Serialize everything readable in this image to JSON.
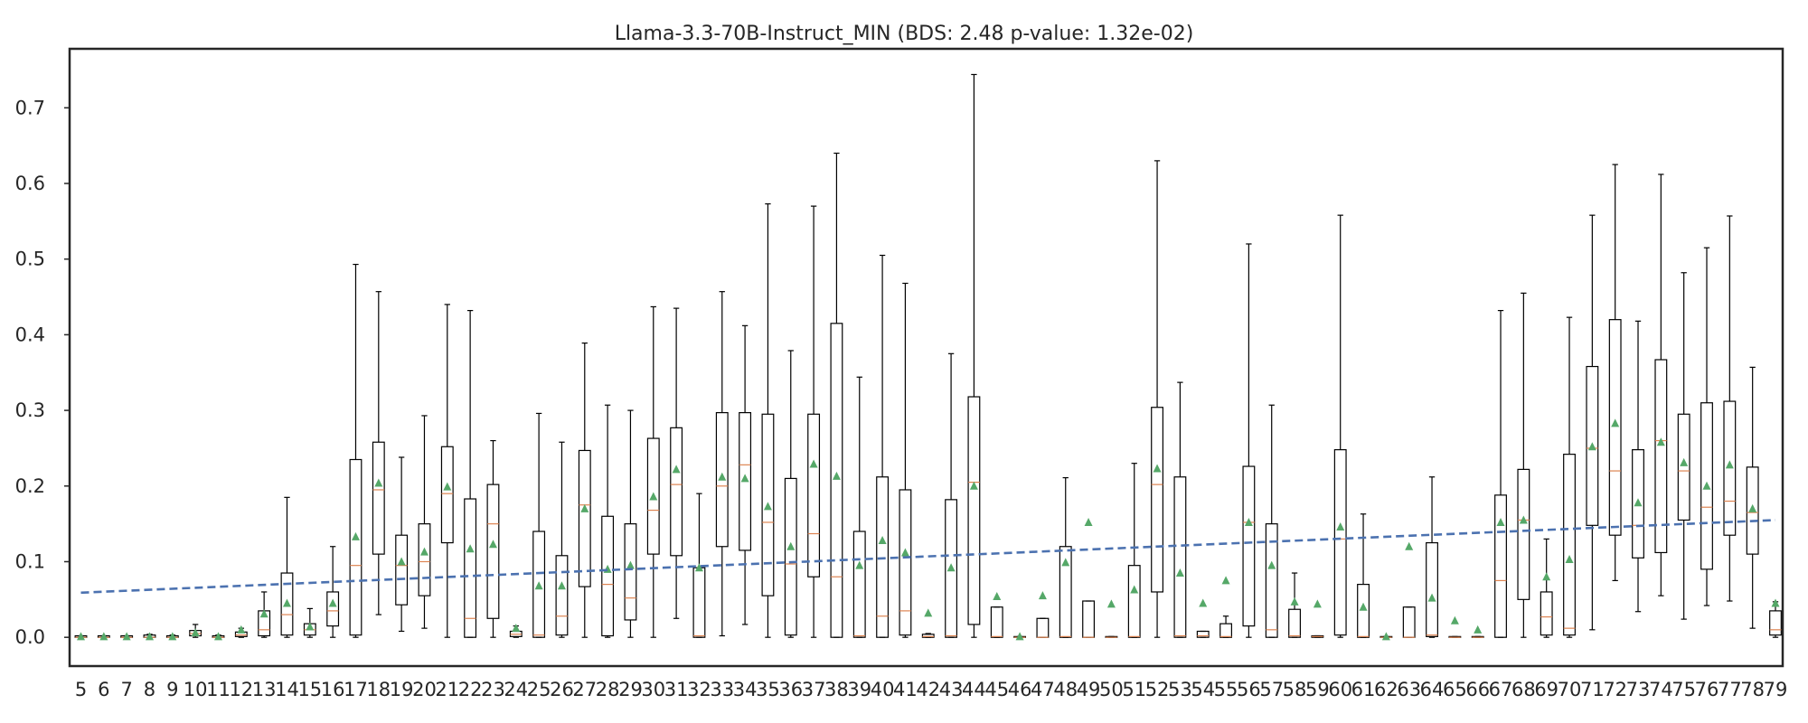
{
  "chart_data": {
    "type": "box",
    "title": "Llama-3.3-70B-Instruct_MIN (BDS: 2.48 p-value: 1.32e-02)",
    "xlabel": "",
    "ylabel": "",
    "ylim": [
      -0.038,
      0.778
    ],
    "y_ticks": [
      0.0,
      0.1,
      0.2,
      0.3,
      0.4,
      0.5,
      0.6,
      0.7
    ],
    "y_tick_labels": [
      "0.0",
      "0.1",
      "0.2",
      "0.3",
      "0.4",
      "0.5",
      "0.6",
      "0.7"
    ],
    "grid": false,
    "legend": "none",
    "colors": {
      "box": "#000000",
      "median": "#dd8452",
      "mean_marker": "#55a868",
      "trend": "#4c72b0",
      "frame": "#262626"
    },
    "categories": [
      "5",
      "6",
      "7",
      "8",
      "9",
      "10",
      "11",
      "12",
      "13",
      "14",
      "15",
      "16",
      "17",
      "18",
      "19",
      "20",
      "21",
      "22",
      "23",
      "24",
      "25",
      "26",
      "27",
      "28",
      "29",
      "30",
      "31",
      "32",
      "33",
      "34",
      "35",
      "36",
      "37",
      "38",
      "39",
      "40",
      "41",
      "42",
      "43",
      "44",
      "45",
      "46",
      "47",
      "48",
      "49",
      "50",
      "51",
      "52",
      "53",
      "54",
      "55",
      "56",
      "57",
      "58",
      "59",
      "60",
      "61",
      "62",
      "63",
      "64",
      "65",
      "66",
      "67",
      "68",
      "69",
      "70",
      "71",
      "72",
      "73",
      "74",
      "75",
      "76",
      "77",
      "78",
      "79"
    ],
    "boxes": [
      {
        "wlo": 0,
        "q1": 0,
        "med": 0,
        "q3": 0.002,
        "whi": 0.002,
        "mean": 0.001
      },
      {
        "wlo": 0,
        "q1": 0,
        "med": 0,
        "q3": 0.002,
        "whi": 0.002,
        "mean": 0.001
      },
      {
        "wlo": 0,
        "q1": 0,
        "med": 0,
        "q3": 0.002,
        "whi": 0.002,
        "mean": 0.001
      },
      {
        "wlo": 0,
        "q1": 0,
        "med": 0,
        "q3": 0.003,
        "whi": 0.004,
        "mean": 0.001
      },
      {
        "wlo": 0,
        "q1": 0,
        "med": 0,
        "q3": 0.002,
        "whi": 0.003,
        "mean": 0.001
      },
      {
        "wlo": 0,
        "q1": 0.002,
        "med": 0.005,
        "q3": 0.009,
        "whi": 0.017,
        "mean": 0.006
      },
      {
        "wlo": 0,
        "q1": 0,
        "med": 0,
        "q3": 0.002,
        "whi": 0.003,
        "mean": 0.001
      },
      {
        "wlo": 0,
        "q1": 0.001,
        "med": 0.003,
        "q3": 0.007,
        "whi": 0.012,
        "mean": 0.01
      },
      {
        "wlo": 0,
        "q1": 0.002,
        "med": 0.01,
        "q3": 0.035,
        "whi": 0.06,
        "mean": 0.031
      },
      {
        "wlo": 0,
        "q1": 0.003,
        "med": 0.03,
        "q3": 0.085,
        "whi": 0.185,
        "mean": 0.045
      },
      {
        "wlo": 0,
        "q1": 0.003,
        "med": 0.01,
        "q3": 0.018,
        "whi": 0.038,
        "mean": 0.014
      },
      {
        "wlo": 0,
        "q1": 0.015,
        "med": 0.035,
        "q3": 0.06,
        "whi": 0.12,
        "mean": 0.045
      },
      {
        "wlo": 0,
        "q1": 0.003,
        "med": 0.095,
        "q3": 0.235,
        "whi": 0.493,
        "mean": 0.133
      },
      {
        "wlo": 0.03,
        "q1": 0.11,
        "med": 0.195,
        "q3": 0.258,
        "whi": 0.457,
        "mean": 0.204
      },
      {
        "wlo": 0.008,
        "q1": 0.043,
        "med": 0.095,
        "q3": 0.135,
        "whi": 0.238,
        "mean": 0.1
      },
      {
        "wlo": 0.012,
        "q1": 0.055,
        "med": 0.1,
        "q3": 0.15,
        "whi": 0.293,
        "mean": 0.113
      },
      {
        "wlo": 0,
        "q1": 0.125,
        "med": 0.19,
        "q3": 0.252,
        "whi": 0.44,
        "mean": 0.199
      },
      {
        "wlo": 0,
        "q1": 0,
        "med": 0.025,
        "q3": 0.183,
        "whi": 0.432,
        "mean": 0.117
      },
      {
        "wlo": 0,
        "q1": 0.025,
        "med": 0.15,
        "q3": 0.202,
        "whi": 0.26,
        "mean": 0.123
      },
      {
        "wlo": 0,
        "q1": 0.001,
        "med": 0.004,
        "q3": 0.008,
        "whi": 0.015,
        "mean": 0.012
      },
      {
        "wlo": 0,
        "q1": 0,
        "med": 0.003,
        "q3": 0.14,
        "whi": 0.296,
        "mean": 0.068
      },
      {
        "wlo": 0,
        "q1": 0.003,
        "med": 0.028,
        "q3": 0.108,
        "whi": 0.258,
        "mean": 0.068
      },
      {
        "wlo": 0,
        "q1": 0.067,
        "med": 0.175,
        "q3": 0.247,
        "whi": 0.389,
        "mean": 0.17
      },
      {
        "wlo": 0,
        "q1": 0.002,
        "med": 0.07,
        "q3": 0.16,
        "whi": 0.307,
        "mean": 0.09
      },
      {
        "wlo": 0,
        "q1": 0.023,
        "med": 0.052,
        "q3": 0.15,
        "whi": 0.3,
        "mean": 0.095
      },
      {
        "wlo": 0,
        "q1": 0.11,
        "med": 0.168,
        "q3": 0.263,
        "whi": 0.437,
        "mean": 0.186
      },
      {
        "wlo": 0.025,
        "q1": 0.108,
        "med": 0.202,
        "q3": 0.277,
        "whi": 0.435,
        "mean": 0.222
      },
      {
        "wlo": 0,
        "q1": 0,
        "med": 0.002,
        "q3": 0.092,
        "whi": 0.19,
        "mean": 0.092
      },
      {
        "wlo": 0.002,
        "q1": 0.12,
        "med": 0.2,
        "q3": 0.297,
        "whi": 0.457,
        "mean": 0.212
      },
      {
        "wlo": 0.017,
        "q1": 0.115,
        "med": 0.228,
        "q3": 0.297,
        "whi": 0.412,
        "mean": 0.21
      },
      {
        "wlo": 0,
        "q1": 0.055,
        "med": 0.152,
        "q3": 0.295,
        "whi": 0.573,
        "mean": 0.173
      },
      {
        "wlo": 0,
        "q1": 0.003,
        "med": 0.097,
        "q3": 0.21,
        "whi": 0.379,
        "mean": 0.12
      },
      {
        "wlo": 0,
        "q1": 0.08,
        "med": 0.137,
        "q3": 0.295,
        "whi": 0.57,
        "mean": 0.229
      },
      {
        "wlo": 0,
        "q1": 0,
        "med": 0.08,
        "q3": 0.415,
        "whi": 0.64,
        "mean": 0.213
      },
      {
        "wlo": 0,
        "q1": 0,
        "med": 0.002,
        "q3": 0.14,
        "whi": 0.344,
        "mean": 0.095
      },
      {
        "wlo": 0,
        "q1": 0,
        "med": 0.028,
        "q3": 0.212,
        "whi": 0.505,
        "mean": 0.128
      },
      {
        "wlo": 0,
        "q1": 0.003,
        "med": 0.035,
        "q3": 0.195,
        "whi": 0.468,
        "mean": 0.112
      },
      {
        "wlo": 0,
        "q1": 0,
        "med": 0.001,
        "q3": 0.004,
        "whi": 0.005,
        "mean": 0.032
      },
      {
        "wlo": 0,
        "q1": 0,
        "med": 0.002,
        "q3": 0.182,
        "whi": 0.375,
        "mean": 0.092
      },
      {
        "wlo": 0,
        "q1": 0.017,
        "med": 0.205,
        "q3": 0.318,
        "whi": 0.744,
        "mean": 0.2
      },
      {
        "wlo": 0,
        "q1": 0,
        "med": 0.001,
        "q3": 0.04,
        "whi": 0.04,
        "mean": 0.054
      },
      {
        "wlo": 0,
        "q1": 0,
        "med": 0,
        "q3": 0.001,
        "whi": 0.001,
        "mean": 0.001
      },
      {
        "wlo": 0,
        "q1": 0,
        "med": 0,
        "q3": 0.025,
        "whi": 0.025,
        "mean": 0.055
      },
      {
        "wlo": 0,
        "q1": 0,
        "med": 0.001,
        "q3": 0.12,
        "whi": 0.211,
        "mean": 0.099
      },
      {
        "wlo": 0,
        "q1": 0,
        "med": 0,
        "q3": 0.048,
        "whi": 0.048,
        "mean": 0.152
      },
      {
        "wlo": 0,
        "q1": 0,
        "med": 0,
        "q3": 0.001,
        "whi": 0.001,
        "mean": 0.044
      },
      {
        "wlo": 0,
        "q1": 0,
        "med": 0.001,
        "q3": 0.095,
        "whi": 0.23,
        "mean": 0.063
      },
      {
        "wlo": 0,
        "q1": 0.06,
        "med": 0.202,
        "q3": 0.304,
        "whi": 0.63,
        "mean": 0.223
      },
      {
        "wlo": 0,
        "q1": 0,
        "med": 0.002,
        "q3": 0.212,
        "whi": 0.337,
        "mean": 0.085
      },
      {
        "wlo": 0,
        "q1": 0,
        "med": 0.002,
        "q3": 0.008,
        "whi": 0.008,
        "mean": 0.045
      },
      {
        "wlo": 0,
        "q1": 0,
        "med": 0.001,
        "q3": 0.018,
        "whi": 0.028,
        "mean": 0.075
      },
      {
        "wlo": 0,
        "q1": 0.015,
        "med": 0.152,
        "q3": 0.226,
        "whi": 0.52,
        "mean": 0.152
      },
      {
        "wlo": 0,
        "q1": 0,
        "med": 0.01,
        "q3": 0.15,
        "whi": 0.307,
        "mean": 0.095
      },
      {
        "wlo": 0,
        "q1": 0,
        "med": 0.002,
        "q3": 0.037,
        "whi": 0.085,
        "mean": 0.047
      },
      {
        "wlo": 0,
        "q1": 0,
        "med": 0.001,
        "q3": 0.002,
        "whi": 0.002,
        "mean": 0.044
      },
      {
        "wlo": 0,
        "q1": 0.003,
        "med": 0.13,
        "q3": 0.248,
        "whi": 0.558,
        "mean": 0.146
      },
      {
        "wlo": 0,
        "q1": 0,
        "med": 0.001,
        "q3": 0.07,
        "whi": 0.163,
        "mean": 0.04
      },
      {
        "wlo": 0,
        "q1": 0,
        "med": 0,
        "q3": 0.001,
        "whi": 0.001,
        "mean": 0.001
      },
      {
        "wlo": 0,
        "q1": 0,
        "med": 0,
        "q3": 0.04,
        "whi": 0.04,
        "mean": 0.12
      },
      {
        "wlo": 0,
        "q1": 0.001,
        "med": 0.003,
        "q3": 0.125,
        "whi": 0.212,
        "mean": 0.052
      },
      {
        "wlo": 0,
        "q1": 0,
        "med": 0,
        "q3": 0.001,
        "whi": 0.001,
        "mean": 0.022
      },
      {
        "wlo": 0,
        "q1": 0,
        "med": 0,
        "q3": 0.001,
        "whi": 0.001,
        "mean": 0.01
      },
      {
        "wlo": 0,
        "q1": 0,
        "med": 0.075,
        "q3": 0.188,
        "whi": 0.432,
        "mean": 0.152
      },
      {
        "wlo": 0,
        "q1": 0.05,
        "med": 0.155,
        "q3": 0.222,
        "whi": 0.455,
        "mean": 0.155
      },
      {
        "wlo": 0,
        "q1": 0.003,
        "med": 0.027,
        "q3": 0.06,
        "whi": 0.13,
        "mean": 0.08
      },
      {
        "wlo": 0,
        "q1": 0.003,
        "med": 0.012,
        "q3": 0.242,
        "whi": 0.423,
        "mean": 0.103
      },
      {
        "wlo": 0.01,
        "q1": 0.148,
        "med": 0.25,
        "q3": 0.358,
        "whi": 0.558,
        "mean": 0.252
      },
      {
        "wlo": 0.075,
        "q1": 0.135,
        "med": 0.22,
        "q3": 0.42,
        "whi": 0.625,
        "mean": 0.283
      },
      {
        "wlo": 0.034,
        "q1": 0.105,
        "med": 0.148,
        "q3": 0.248,
        "whi": 0.418,
        "mean": 0.178
      },
      {
        "wlo": 0.055,
        "q1": 0.112,
        "med": 0.26,
        "q3": 0.367,
        "whi": 0.612,
        "mean": 0.258
      },
      {
        "wlo": 0.024,
        "q1": 0.155,
        "med": 0.22,
        "q3": 0.295,
        "whi": 0.482,
        "mean": 0.231
      },
      {
        "wlo": 0.042,
        "q1": 0.09,
        "med": 0.172,
        "q3": 0.31,
        "whi": 0.515,
        "mean": 0.2
      },
      {
        "wlo": 0.048,
        "q1": 0.135,
        "med": 0.18,
        "q3": 0.312,
        "whi": 0.557,
        "mean": 0.228
      },
      {
        "wlo": 0.012,
        "q1": 0.11,
        "med": 0.165,
        "q3": 0.225,
        "whi": 0.357,
        "mean": 0.17
      },
      {
        "wlo": 0,
        "q1": 0.003,
        "med": 0.01,
        "q3": 0.035,
        "whi": 0.047,
        "mean": 0.045
      }
    ],
    "trend_line": {
      "x": [
        "5",
        "79"
      ],
      "y": [
        0.059,
        0.155
      ]
    }
  }
}
